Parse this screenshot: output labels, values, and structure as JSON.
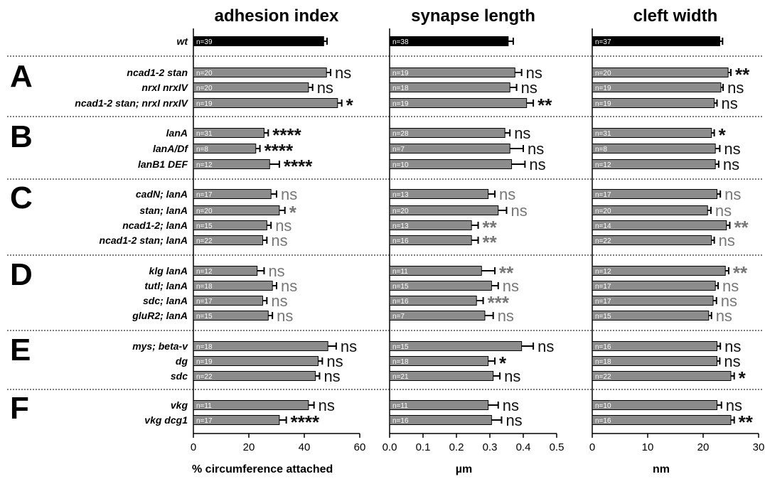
{
  "chart_data": {
    "type": "bar",
    "orientation": "horizontal",
    "panels": [
      {
        "title": "adhesion index",
        "xlabel": "% circumference attached",
        "xlim": [
          0,
          60
        ],
        "ticks": [
          "0",
          "20",
          "40",
          "60"
        ]
      },
      {
        "title": "synapse length",
        "xlabel": "µm",
        "xlim": [
          0,
          0.5
        ],
        "ticks": [
          "0.0",
          "0.1",
          "0.2",
          "0.3",
          "0.4",
          "0.5"
        ]
      },
      {
        "title": "cleft width",
        "xlabel": "nm",
        "xlim": [
          0,
          30
        ],
        "ticks": [
          "0",
          "10",
          "20",
          "30"
        ]
      }
    ],
    "groups": [
      {
        "label": "",
        "rows": [
          {
            "genotype": "wt",
            "is_control": true,
            "values": [
              47,
              0.355,
              23
            ],
            "errors": [
              1.2,
              0.015,
              0.5
            ],
            "n": [
              "n=39",
              "n=38",
              "n=37"
            ],
            "sig": [
              "",
              "",
              ""
            ]
          }
        ]
      },
      {
        "label": "A",
        "rows": [
          {
            "genotype": "ncad1-2 stan",
            "values": [
              48,
              0.375,
              24.5
            ],
            "errors": [
              1.5,
              0.02,
              0.5
            ],
            "n": [
              "n=20",
              "n=19",
              "n=20"
            ],
            "sig": [
              "ns",
              "ns",
              "**"
            ]
          },
          {
            "genotype": "nrxI nrxIV",
            "values": [
              41.5,
              0.36,
              23.2
            ],
            "errors": [
              1.5,
              0.02,
              0.4
            ],
            "n": [
              "n=20",
              "n=18",
              "n=19"
            ],
            "sig": [
              "ns",
              "ns",
              "ns"
            ]
          },
          {
            "genotype": "ncad1-2 stan; nrxI nrxIV",
            "values": [
              52,
              0.41,
              22
            ],
            "errors": [
              1.5,
              0.02,
              0.5
            ],
            "n": [
              "n=19",
              "n=19",
              "n=19"
            ],
            "sig": [
              "*",
              "**",
              "ns"
            ]
          }
        ]
      },
      {
        "label": "B",
        "rows": [
          {
            "genotype": "lanA",
            "values": [
              25.5,
              0.345,
              21.5
            ],
            "errors": [
              1.5,
              0.015,
              0.5
            ],
            "n": [
              "n=31",
              "n=28",
              "n=31"
            ],
            "sig": [
              "****",
              "ns",
              "*"
            ]
          },
          {
            "genotype": "lanA/Df",
            "values": [
              22.5,
              0.36,
              22.2
            ],
            "errors": [
              1.5,
              0.04,
              0.8
            ],
            "n": [
              "n=8",
              "n=7",
              "n=8"
            ],
            "sig": [
              "****",
              "ns",
              "ns"
            ]
          },
          {
            "genotype": "lanB1 DEF",
            "values": [
              27.5,
              0.365,
              22.2
            ],
            "errors": [
              3.5,
              0.04,
              0.6
            ],
            "n": [
              "n=12",
              "n=10",
              "n=12"
            ],
            "sig": [
              "****",
              "ns",
              "ns"
            ]
          }
        ]
      },
      {
        "label": "C",
        "rows": [
          {
            "genotype": "cadN; lanA",
            "values": [
              28,
              0.295,
              22.5
            ],
            "errors": [
              2,
              0.02,
              0.6
            ],
            "n": [
              "n=17",
              "n=13",
              "n=17"
            ],
            "sig": [
              "ns",
              "ns",
              "ns"
            ]
          },
          {
            "genotype": "stan; lanA",
            "values": [
              31,
              0.325,
              20.8
            ],
            "errors": [
              2,
              0.025,
              0.6
            ],
            "n": [
              "n=20",
              "n=20",
              "n=20"
            ],
            "sig": [
              "*",
              "ns",
              "ns"
            ]
          },
          {
            "genotype": "ncad1-2; lanA",
            "values": [
              26.5,
              0.245,
              24.2
            ],
            "errors": [
              1.5,
              0.02,
              0.6
            ],
            "n": [
              "n=15",
              "n=13",
              "n=14"
            ],
            "sig": [
              "ns",
              "**",
              "**"
            ]
          },
          {
            "genotype": "ncad1-2 stan; lanA",
            "values": [
              25,
              0.245,
              21.5
            ],
            "errors": [
              1.5,
              0.02,
              0.5
            ],
            "n": [
              "n=22",
              "n=16",
              "n=22"
            ],
            "sig": [
              "ns",
              "**",
              "ns"
            ]
          }
        ]
      },
      {
        "label": "D",
        "rows": [
          {
            "genotype": "klg lanA",
            "values": [
              23,
              0.275,
              24
            ],
            "errors": [
              2.5,
              0.04,
              0.6
            ],
            "n": [
              "n=12",
              "n=11",
              "n=12"
            ],
            "sig": [
              "ns",
              "**",
              "**"
            ]
          },
          {
            "genotype": "tutl; lanA",
            "values": [
              28.5,
              0.305,
              22.2
            ],
            "errors": [
              1.5,
              0.02,
              0.5
            ],
            "n": [
              "n=18",
              "n=15",
              "n=17"
            ],
            "sig": [
              "ns",
              "ns",
              "ns"
            ]
          },
          {
            "genotype": "sdc; lanA",
            "values": [
              25,
              0.26,
              21.8
            ],
            "errors": [
              1.5,
              0.02,
              0.6
            ],
            "n": [
              "n=17",
              "n=16",
              "n=17"
            ],
            "sig": [
              "ns",
              "***",
              "ns"
            ]
          },
          {
            "genotype": "gluR2; lanA",
            "values": [
              27,
              0.285,
              21
            ],
            "errors": [
              1.5,
              0.025,
              0.5
            ],
            "n": [
              "n=15",
              "n=7",
              "n=15"
            ],
            "sig": [
              "ns",
              "ns",
              "ns"
            ]
          }
        ]
      },
      {
        "label": "E",
        "rows": [
          {
            "genotype": "mys; beta-v",
            "values": [
              48.5,
              0.395,
              22.5
            ],
            "errors": [
              3,
              0.035,
              0.6
            ],
            "n": [
              "n=18",
              "n=15",
              "n=16"
            ],
            "sig": [
              "ns",
              "ns",
              "ns"
            ]
          },
          {
            "genotype": "dg",
            "values": [
              45,
              0.295,
              22.5
            ],
            "errors": [
              1.5,
              0.02,
              0.5
            ],
            "n": [
              "n=19",
              "n=18",
              "n=18"
            ],
            "sig": [
              "ns",
              "*",
              "ns"
            ]
          },
          {
            "genotype": "sdc",
            "values": [
              44,
              0.31,
              25
            ],
            "errors": [
              1.5,
              0.02,
              0.6
            ],
            "n": [
              "n=22",
              "n=21",
              "n=22"
            ],
            "sig": [
              "ns",
              "ns",
              "*"
            ]
          }
        ]
      },
      {
        "label": "F",
        "rows": [
          {
            "genotype": "vkg",
            "values": [
              41.5,
              0.295,
              22.5
            ],
            "errors": [
              2,
              0.03,
              0.8
            ],
            "n": [
              "n=11",
              "n=11",
              "n=10"
            ],
            "sig": [
              "ns",
              "ns",
              "ns"
            ]
          },
          {
            "genotype": "vkg dcg1",
            "values": [
              31,
              0.305,
              25
            ],
            "errors": [
              2.5,
              0.03,
              0.6
            ],
            "n": [
              "n=17",
              "n=16",
              "n=16"
            ],
            "sig": [
              "****",
              "ns",
              "**"
            ]
          }
        ]
      }
    ],
    "colors": {
      "control_bar": "#000000",
      "bar": "#8c8c8c",
      "sig_black": "#111111",
      "sig_gray": "#777777"
    },
    "sig_gray_groups": [
      "C",
      "D"
    ]
  }
}
